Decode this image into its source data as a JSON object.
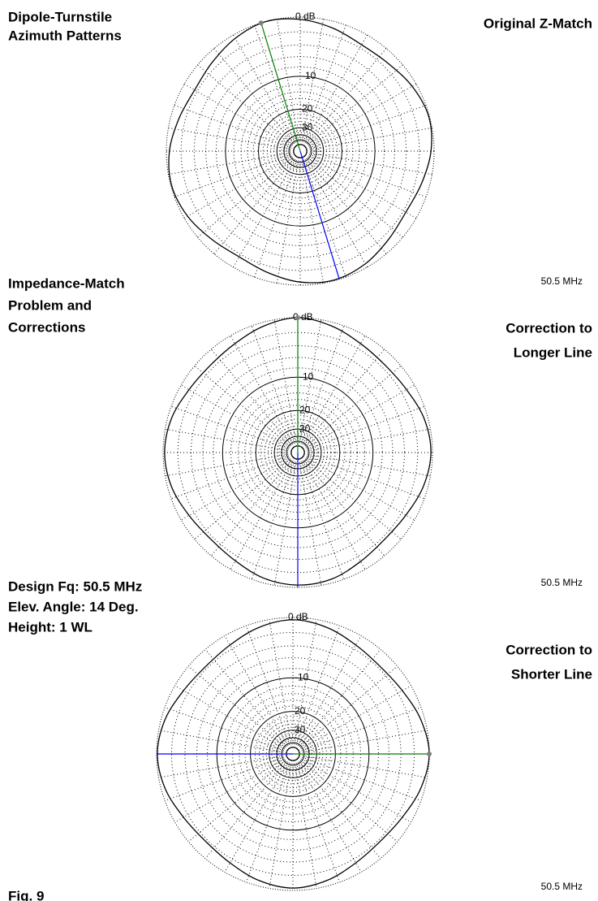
{
  "captions": {
    "heading": [
      "Dipole-Turnstile",
      "Azimuth Patterns"
    ],
    "problem": [
      "Impedance-Match",
      "Problem and",
      "Corrections"
    ],
    "conditions": [
      "Design Fq:  50.5 MHz",
      "Elev. Angle:  14 Deg.",
      "Height:  1 WL"
    ],
    "figure": "Fig. 9"
  },
  "chart_data": [
    {
      "type": "polar",
      "title": [
        "Original Z-Match"
      ],
      "subtitle": "50.5 MHz",
      "radial_scale": "arrl-log",
      "rticks": [
        {
          "value": 0,
          "label": "0 dB"
        },
        -10,
        {
          "value": -20,
          "label": "20"
        },
        {
          "value": -30,
          "label": "30"
        }
      ],
      "theta": [
        0,
        15,
        30,
        45,
        60,
        75,
        90,
        105,
        120,
        135,
        150,
        165,
        180,
        195,
        210,
        225,
        240,
        255,
        270,
        285,
        300,
        315,
        330,
        345
      ],
      "series": [
        {
          "color": "#000000",
          "values": [
            -0.3,
            -0.9,
            -1.5,
            -1.3,
            -0.6,
            -0.1,
            -0.4,
            -1.1,
            -1.6,
            -1.2,
            -0.5,
            -0.1,
            -0.4,
            -1.1,
            -1.6,
            -1.2,
            -0.5,
            -0.1,
            -0.4,
            -1.1,
            -1.6,
            -1.2,
            -0.5,
            0
          ]
        }
      ],
      "peak_azimuth": 343,
      "peak_color": "#008000",
      "back_color": "#0000ff"
    },
    {
      "type": "polar",
      "title": [
        "Correction to",
        "Longer Line"
      ],
      "subtitle": "50.5 MHz",
      "radial_scale": "arrl-log",
      "rticks": [
        {
          "value": 0,
          "label": "0 dB"
        },
        -10,
        {
          "value": -20,
          "label": "20"
        },
        {
          "value": -30,
          "label": "30"
        }
      ],
      "theta": [
        0,
        15,
        30,
        45,
        60,
        75,
        90,
        105,
        120,
        135,
        150,
        165,
        180,
        195,
        210,
        225,
        240,
        255,
        270,
        285,
        300,
        315,
        330,
        345
      ],
      "series": [
        {
          "color": "#000000",
          "values": [
            0,
            -0.5,
            -1.2,
            -1.5,
            -1.2,
            -0.5,
            -0.2,
            -0.6,
            -1.3,
            -1.6,
            -1.2,
            -0.5,
            -0.3,
            -0.6,
            -1.3,
            -1.6,
            -1.2,
            -0.5,
            -0.2,
            -0.5,
            -1.2,
            -1.5,
            -1.2,
            -0.5
          ]
        }
      ],
      "peak_azimuth": 0,
      "peak_color": "#008000",
      "back_color": "#0000ff"
    },
    {
      "type": "polar",
      "title": [
        "Correction to",
        "Shorter Line"
      ],
      "subtitle": "50.5 MHz",
      "radial_scale": "arrl-log",
      "rticks": [
        {
          "value": 0,
          "label": "0 dB"
        },
        -10,
        {
          "value": -20,
          "label": "20"
        },
        {
          "value": -30,
          "label": "30"
        }
      ],
      "theta": [
        0,
        15,
        30,
        45,
        60,
        75,
        90,
        105,
        120,
        135,
        150,
        165,
        180,
        195,
        210,
        225,
        240,
        255,
        270,
        285,
        300,
        315,
        330,
        345
      ],
      "series": [
        {
          "color": "#000000",
          "values": [
            -0.3,
            -0.7,
            -1.4,
            -1.7,
            -1.3,
            -0.5,
            0,
            -0.5,
            -1.3,
            -1.7,
            -1.4,
            -0.7,
            -0.3,
            -0.7,
            -1.4,
            -1.7,
            -1.3,
            -0.5,
            -0.1,
            -0.5,
            -1.3,
            -1.7,
            -1.4,
            -0.7
          ]
        }
      ],
      "peak_azimuth": 90,
      "peak_color": "#008000",
      "back_color": "#0000ff"
    }
  ]
}
